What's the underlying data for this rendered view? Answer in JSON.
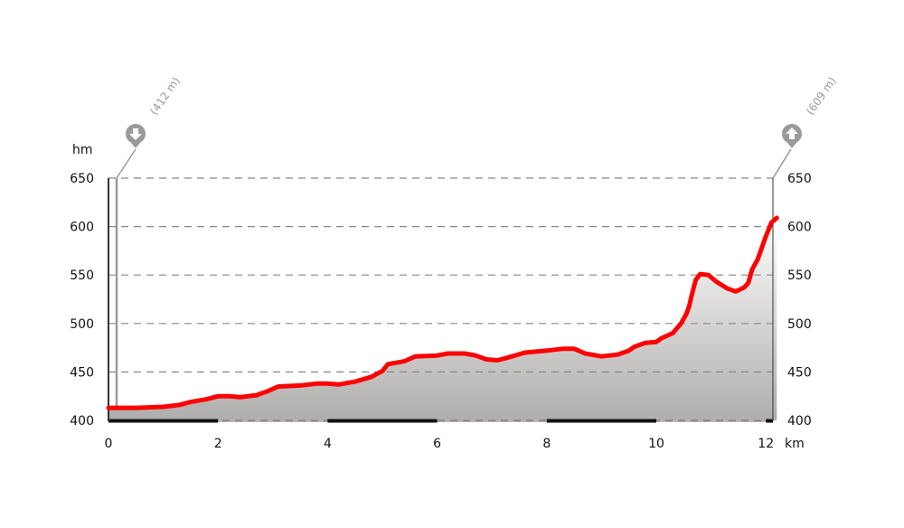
{
  "chart_data": {
    "type": "area",
    "ylabel": "hm",
    "xlabel": "km",
    "xlim": [
      0,
      12.2
    ],
    "ylim": [
      400,
      650
    ],
    "x_ticks": [
      0,
      2,
      4,
      6,
      8,
      10,
      12
    ],
    "y_ticks": [
      400,
      450,
      500,
      550,
      600,
      650
    ],
    "grid": "horizontal-dashed",
    "low_point": {
      "label": "(412 m)",
      "x": 0.15,
      "icon": "arrow-down-icon"
    },
    "high_point": {
      "label": "(609 m)",
      "x": 12.2,
      "icon": "arrow-up-icon"
    },
    "colors": {
      "line": "#ff0000",
      "fill_top": "#ffffff",
      "fill_bottom": "#b0aeac",
      "grid": "#888888",
      "marker": "#9a9a9a"
    },
    "points": [
      [
        0,
        413
      ],
      [
        0.5,
        413
      ],
      [
        1.0,
        414
      ],
      [
        1.3,
        416
      ],
      [
        1.5,
        419
      ],
      [
        1.8,
        422
      ],
      [
        2.0,
        425
      ],
      [
        2.2,
        425
      ],
      [
        2.4,
        424
      ],
      [
        2.7,
        426
      ],
      [
        2.9,
        430
      ],
      [
        3.1,
        435
      ],
      [
        3.5,
        436
      ],
      [
        3.8,
        438
      ],
      [
        4.0,
        438
      ],
      [
        4.2,
        437
      ],
      [
        4.5,
        440
      ],
      [
        4.8,
        445
      ],
      [
        5.0,
        451
      ],
      [
        5.1,
        458
      ],
      [
        5.4,
        461
      ],
      [
        5.6,
        466
      ],
      [
        6.0,
        467
      ],
      [
        6.2,
        469
      ],
      [
        6.5,
        469
      ],
      [
        6.7,
        467
      ],
      [
        6.9,
        463
      ],
      [
        7.1,
        462
      ],
      [
        7.3,
        465
      ],
      [
        7.6,
        470
      ],
      [
        8.0,
        472
      ],
      [
        8.3,
        474
      ],
      [
        8.5,
        474
      ],
      [
        8.7,
        469
      ],
      [
        9.0,
        466
      ],
      [
        9.3,
        468
      ],
      [
        9.5,
        472
      ],
      [
        9.6,
        476
      ],
      [
        9.8,
        480
      ],
      [
        10.0,
        481
      ],
      [
        10.1,
        485
      ],
      [
        10.3,
        490
      ],
      [
        10.45,
        500
      ],
      [
        10.55,
        510
      ],
      [
        10.6,
        518
      ],
      [
        10.65,
        530
      ],
      [
        10.72,
        545
      ],
      [
        10.8,
        551
      ],
      [
        10.95,
        550
      ],
      [
        11.1,
        543
      ],
      [
        11.3,
        536
      ],
      [
        11.45,
        533
      ],
      [
        11.6,
        537
      ],
      [
        11.68,
        542
      ],
      [
        11.75,
        556
      ],
      [
        11.85,
        566
      ],
      [
        12.0,
        590
      ],
      [
        12.1,
        604
      ],
      [
        12.2,
        609
      ]
    ]
  }
}
